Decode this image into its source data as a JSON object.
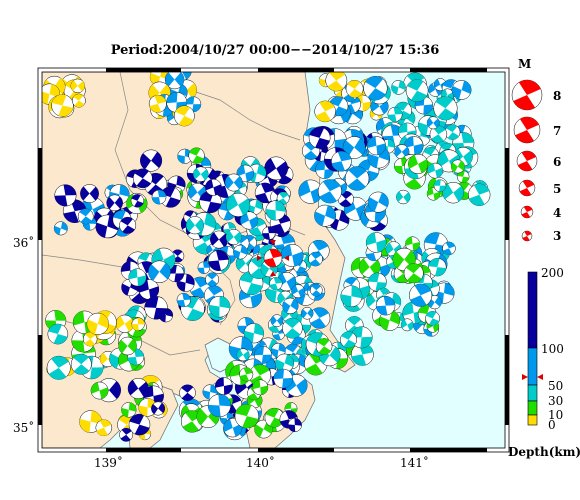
{
  "title": "Period:2004/10/27 00:00−−2014/10/27 15:36",
  "axes": {
    "x_ticks": [
      "139˚",
      "140˚",
      "141˚"
    ],
    "y_ticks": [
      "36˚",
      "35˚"
    ]
  },
  "magnitude_legend": {
    "header": "M",
    "items": [
      "8",
      "7",
      "6",
      "5",
      "4",
      "3"
    ]
  },
  "depth_legend": {
    "label": "Depth(km)",
    "ticks": [
      "200",
      "100",
      "50",
      "30",
      "10",
      "0"
    ],
    "colors": {
      "deep": "#08009c",
      "mid": "#0099ee",
      "shallow_cyan": "#00cccc",
      "green": "#22dd00",
      "yellow": "#ffdd00"
    }
  },
  "colors": {
    "land": "#fce8cc",
    "sea": "#e2ffff",
    "mainshock": "#ff0000"
  }
}
